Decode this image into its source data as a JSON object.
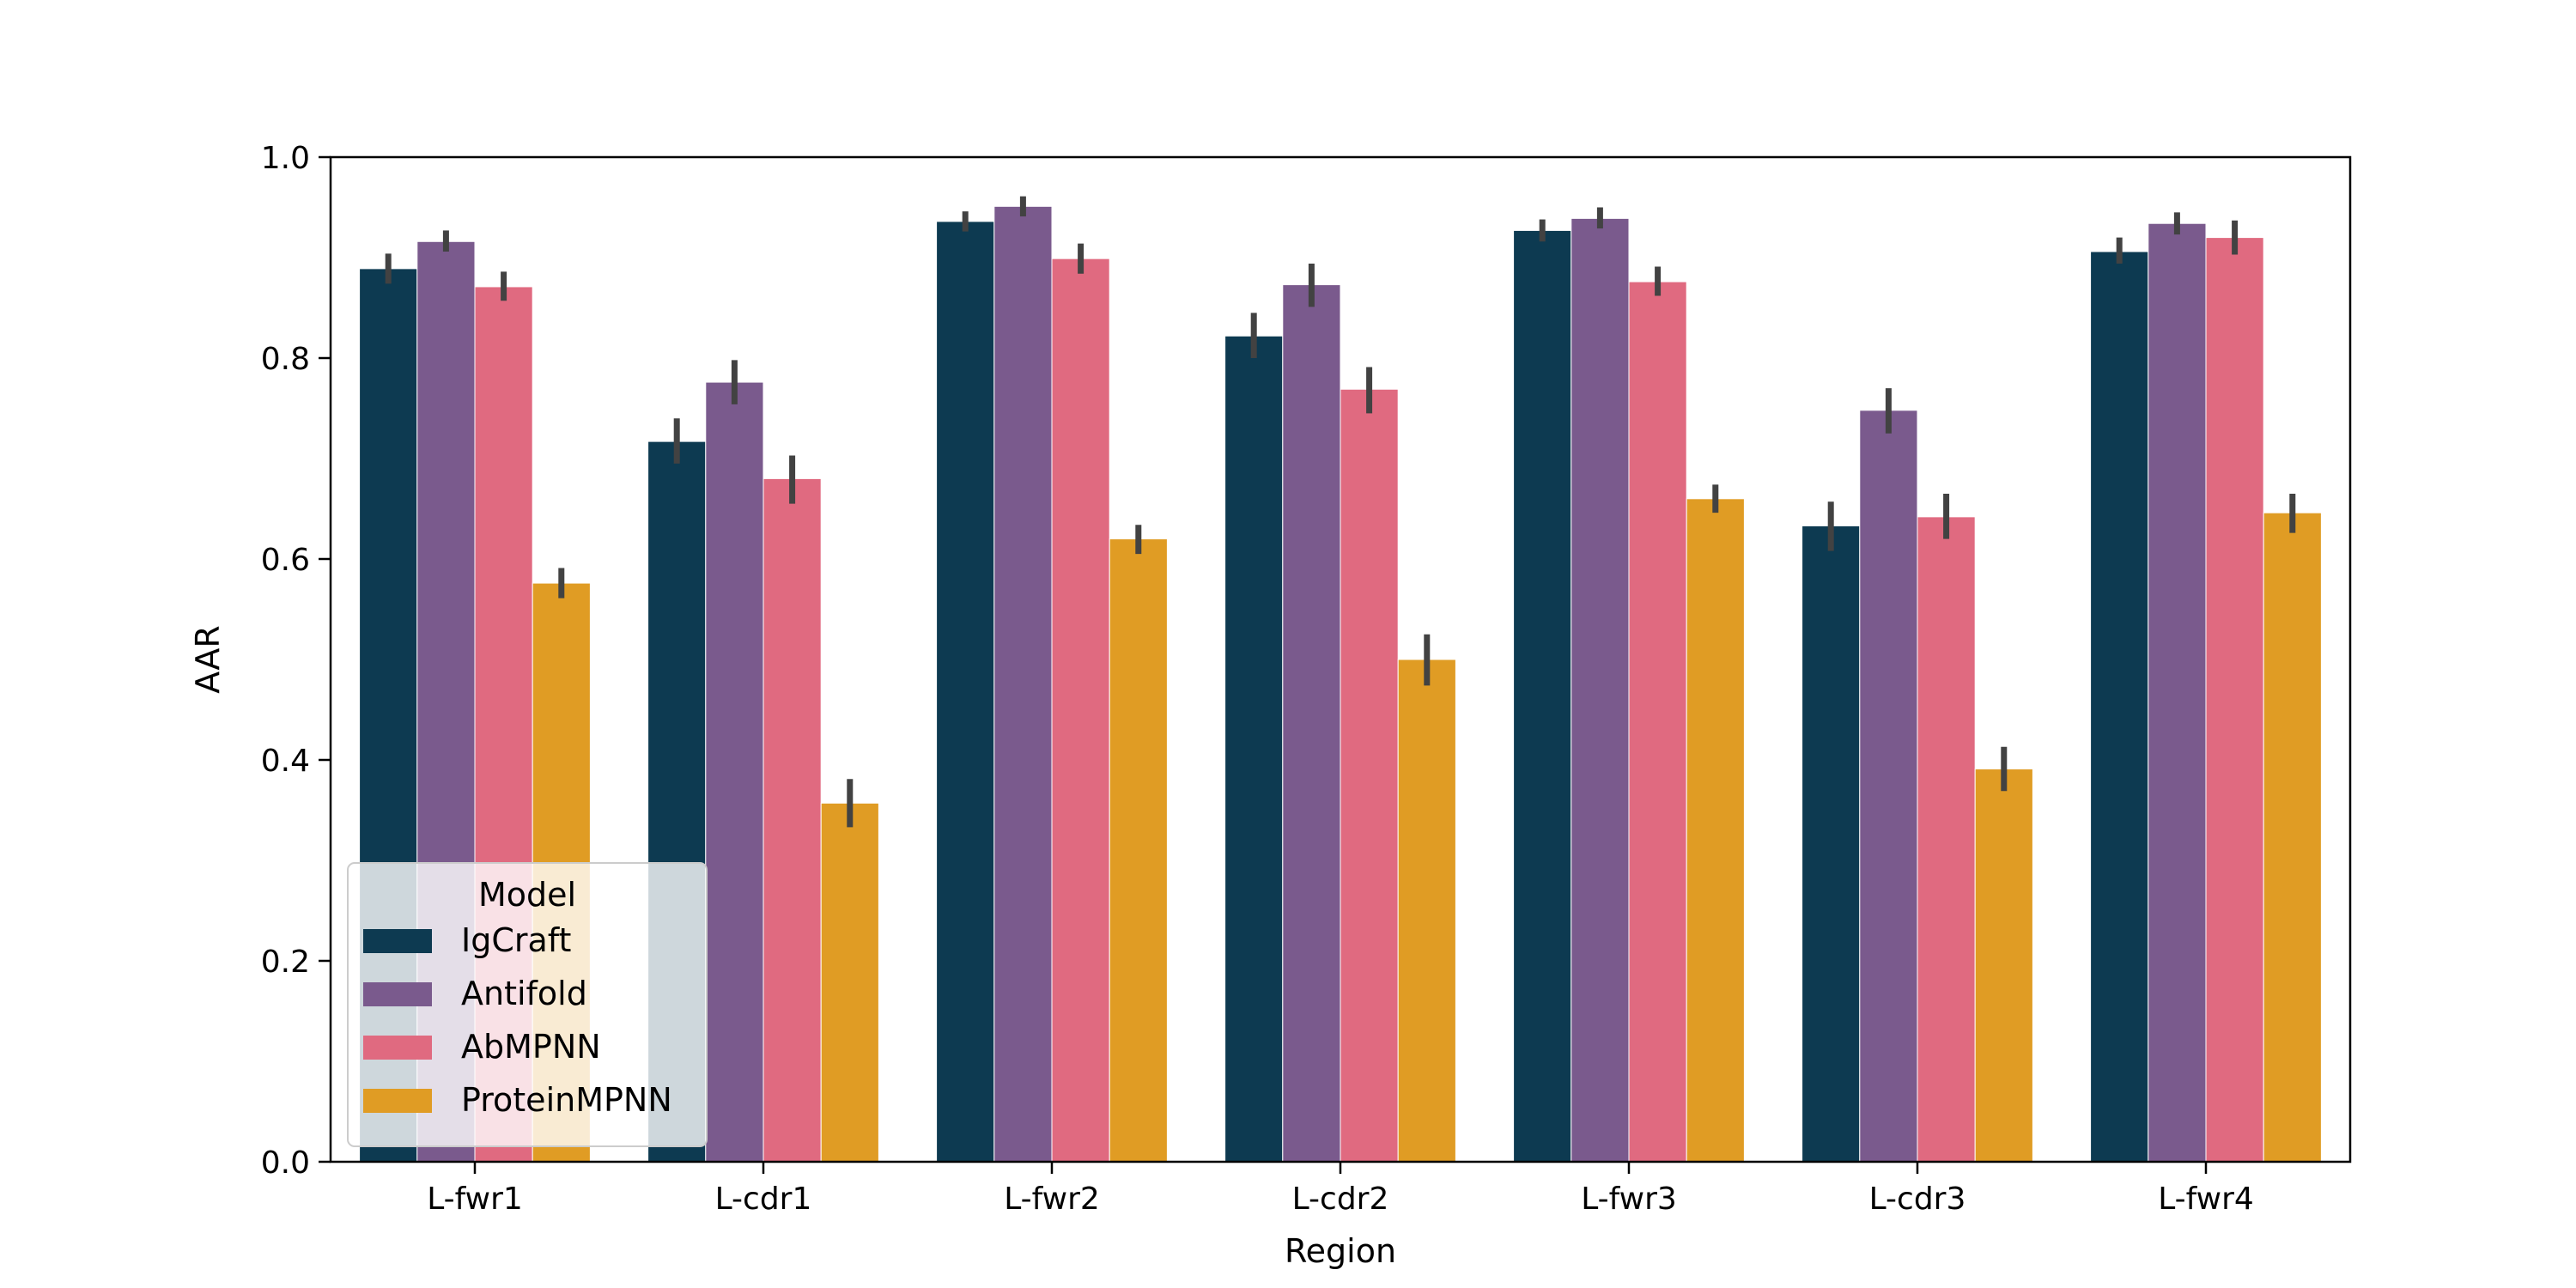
{
  "chart_data": {
    "type": "bar",
    "xlabel": "Region",
    "ylabel": "AAR",
    "ylim": [
      0,
      1.0
    ],
    "yticks": [
      "0.0",
      "0.2",
      "0.4",
      "0.6",
      "0.8",
      "1.0"
    ],
    "grid": false,
    "categories": [
      "L-fwr1",
      "L-cdr1",
      "L-fwr2",
      "L-cdr2",
      "L-fwr3",
      "L-cdr3",
      "L-fwr4"
    ],
    "series": [
      {
        "name": "IgCraft",
        "color": "#0d3a51",
        "values": [
          0.889,
          0.717,
          0.936,
          0.822,
          0.927,
          0.633,
          0.906
        ],
        "err_low": [
          0.874,
          0.695,
          0.926,
          0.8,
          0.916,
          0.608,
          0.894
        ],
        "err_high": [
          0.904,
          0.74,
          0.946,
          0.845,
          0.938,
          0.657,
          0.92
        ]
      },
      {
        "name": "Antifold",
        "color": "#7a5a8d",
        "values": [
          0.916,
          0.776,
          0.951,
          0.873,
          0.939,
          0.748,
          0.934
        ],
        "err_low": [
          0.906,
          0.754,
          0.941,
          0.851,
          0.929,
          0.725,
          0.923
        ],
        "err_high": [
          0.927,
          0.798,
          0.961,
          0.894,
          0.95,
          0.77,
          0.945
        ]
      },
      {
        "name": "AbMPNN",
        "color": "#e06a80",
        "values": [
          0.871,
          0.68,
          0.899,
          0.769,
          0.876,
          0.642,
          0.92
        ],
        "err_low": [
          0.857,
          0.655,
          0.884,
          0.745,
          0.862,
          0.62,
          0.903
        ],
        "err_high": [
          0.886,
          0.703,
          0.914,
          0.791,
          0.891,
          0.665,
          0.937
        ]
      },
      {
        "name": "ProteinMPNN",
        "color": "#e09c24",
        "values": [
          0.576,
          0.357,
          0.62,
          0.5,
          0.66,
          0.391,
          0.646
        ],
        "err_low": [
          0.561,
          0.333,
          0.605,
          0.474,
          0.646,
          0.369,
          0.626
        ],
        "err_high": [
          0.591,
          0.381,
          0.634,
          0.525,
          0.674,
          0.413,
          0.665
        ]
      }
    ],
    "legend": {
      "title": "Model",
      "placement": "lower-left"
    }
  }
}
